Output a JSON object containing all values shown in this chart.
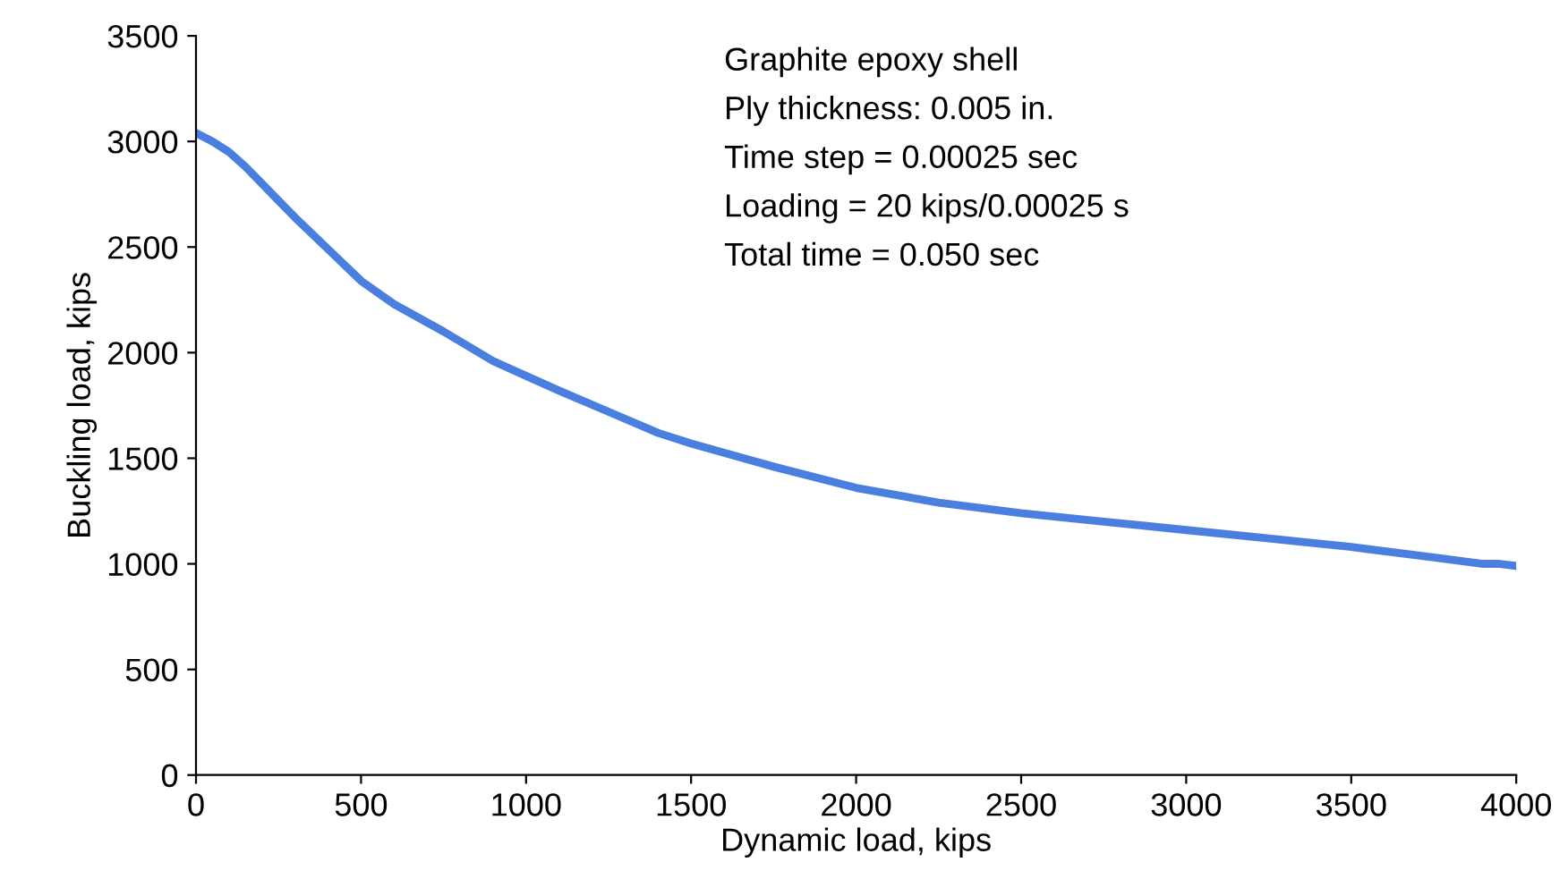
{
  "chart_data": {
    "type": "line",
    "xlabel": "Dynamic load, kips",
    "ylabel": "Buckling load, kips",
    "annotations": [
      "Graphite epoxy shell",
      "Ply thickness: 0.005 in.",
      "Time step = 0.00025 sec",
      "Loading = 20 kips/0.00025 s",
      "Total time = 0.050 sec"
    ],
    "x": [
      0,
      50,
      100,
      150,
      200,
      250,
      300,
      400,
      500,
      600,
      750,
      900,
      1000,
      1100,
      1250,
      1400,
      1500,
      1750,
      2000,
      2250,
      2500,
      2750,
      3000,
      3250,
      3500,
      3750,
      3900,
      3950,
      4000
    ],
    "series": [
      {
        "color": "#4a7fe0",
        "values": [
          3040,
          3000,
          2950,
          2880,
          2800,
          2720,
          2640,
          2490,
          2340,
          2230,
          2100,
          1960,
          1890,
          1820,
          1720,
          1620,
          1570,
          1460,
          1360,
          1290,
          1240,
          1200,
          1160,
          1120,
          1080,
          1030,
          1000,
          1000,
          990
        ]
      }
    ],
    "xlim": [
      0,
      4000
    ],
    "xticks": [
      0,
      500,
      1000,
      1500,
      2000,
      2500,
      3000,
      3500,
      4000
    ],
    "ylim": [
      0,
      3500
    ],
    "yticks": [
      0,
      500,
      1000,
      1500,
      2000,
      2500,
      3000,
      3500
    ],
    "grid": false,
    "legend": false,
    "marker": "none",
    "line_style": "solid"
  }
}
